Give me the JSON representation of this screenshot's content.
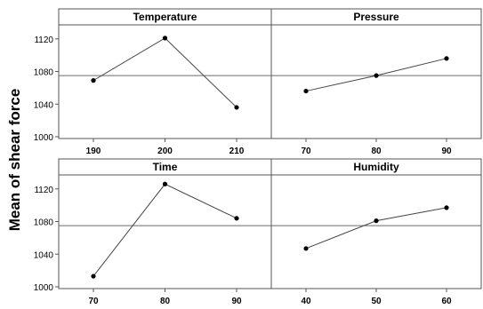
{
  "chart_data": {
    "type": "line",
    "ylabel": "Mean of shear force",
    "ylim": [
      1000,
      1135
    ],
    "yticks": [
      1000,
      1040,
      1080,
      1120
    ],
    "reference_line": 1075,
    "panels": [
      {
        "title": "Temperature",
        "categories": [
          "190",
          "200",
          "210"
        ],
        "values": [
          1069,
          1121,
          1036
        ]
      },
      {
        "title": "Pressure",
        "categories": [
          "70",
          "80",
          "90"
        ],
        "values": [
          1056,
          1075,
          1096
        ]
      },
      {
        "title": "Time",
        "categories": [
          "70",
          "80",
          "90"
        ],
        "values": [
          1013,
          1126,
          1084
        ]
      },
      {
        "title": "Humidity",
        "categories": [
          "40",
          "50",
          "60"
        ],
        "values": [
          1047,
          1081,
          1097
        ]
      }
    ],
    "grid": false,
    "colors": {
      "line": "#444444",
      "point": "#000000",
      "frame": "#555555",
      "header_fill": "#ffffff"
    }
  }
}
